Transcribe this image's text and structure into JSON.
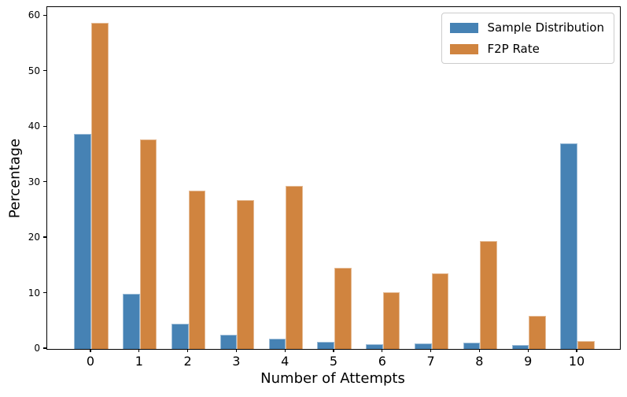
{
  "chart_data": {
    "type": "bar",
    "title": "",
    "xlabel": "Number of Attempts",
    "ylabel": "Percentage",
    "categories": [
      "0",
      "1",
      "2",
      "3",
      "4",
      "5",
      "6",
      "7",
      "8",
      "9",
      "10"
    ],
    "series": [
      {
        "name": "Sample Distribution",
        "color": "#4682b4",
        "values": [
          38.7,
          9.9,
          4.5,
          2.6,
          1.8,
          1.3,
          0.8,
          1.0,
          1.1,
          0.7,
          37.1
        ]
      },
      {
        "name": "F2P Rate",
        "color": "#d0843f",
        "values": [
          58.8,
          37.8,
          28.5,
          26.8,
          29.4,
          14.6,
          10.2,
          13.7,
          19.5,
          6.0,
          1.4
        ]
      }
    ],
    "y_ticks": [
      0,
      10,
      20,
      30,
      40,
      50,
      60
    ],
    "ylim": [
      0,
      61.6
    ],
    "grid": false,
    "legend_position": "upper right",
    "axis_color": "#000000",
    "background_color": "#ffffff"
  }
}
